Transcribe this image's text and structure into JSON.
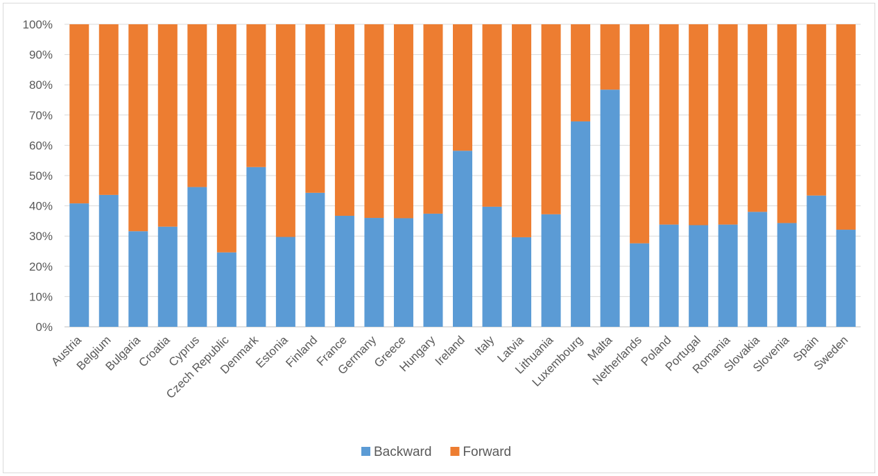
{
  "chart_data": {
    "type": "bar",
    "stacked": true,
    "percent_stacked": true,
    "categories": [
      "Austria",
      "Belgium",
      "Bulgaria",
      "Croatia",
      "Cyprus",
      "Czech Republic",
      "Denmark",
      "Estonia",
      "Finland",
      "France",
      "Germany",
      "Greece",
      "Hungary",
      "Ireland",
      "Italy",
      "Latvia",
      "Lithuania",
      "Luxembourg",
      "Malta",
      "Netherlands",
      "Poland",
      "Portugal",
      "Romania",
      "Slovakia",
      "Slovenia",
      "Spain",
      "Sweden"
    ],
    "series": [
      {
        "name": "Backward",
        "color": "#5b9bd5",
        "values": [
          40.8,
          43.6,
          31.6,
          33.1,
          46.2,
          24.6,
          52.8,
          29.7,
          44.3,
          36.7,
          36.0,
          35.9,
          37.4,
          58.2,
          39.7,
          29.6,
          37.2,
          67.9,
          78.4,
          27.6,
          33.8,
          33.6,
          33.8,
          38.0,
          34.3,
          43.4,
          32.1
        ]
      },
      {
        "name": "Forward",
        "color": "#ed7d31",
        "values": [
          59.2,
          56.4,
          68.4,
          66.9,
          53.8,
          75.4,
          47.2,
          70.3,
          55.7,
          63.3,
          64.0,
          64.1,
          62.6,
          41.8,
          60.3,
          70.4,
          62.8,
          32.1,
          21.6,
          72.4,
          66.2,
          66.4,
          66.2,
          62.0,
          65.7,
          56.6,
          67.9
        ]
      }
    ],
    "title": "",
    "xlabel": "",
    "ylabel": "",
    "ylim": [
      0,
      100
    ],
    "yticks": [
      "0%",
      "10%",
      "20%",
      "30%",
      "40%",
      "50%",
      "60%",
      "70%",
      "80%",
      "90%",
      "100%"
    ],
    "grid": true,
    "legend": "bottom-center"
  }
}
